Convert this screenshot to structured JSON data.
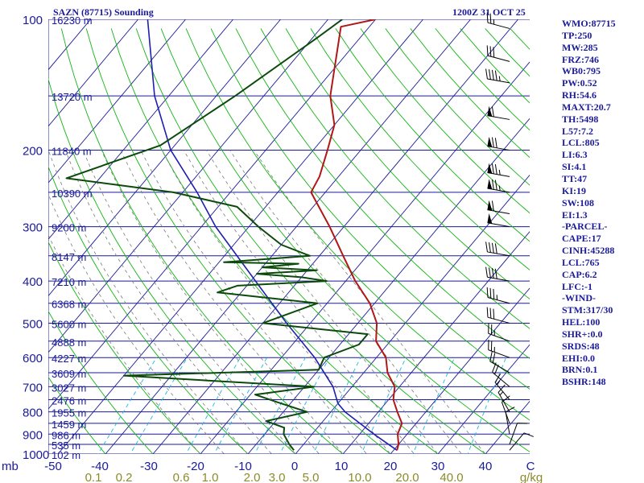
{
  "title": "SAZN (87715) Sounding",
  "timestamp": "1200Z 31 OCT 25",
  "colors": {
    "isobar": "#1a1a9a",
    "isotherm": "#1a1a9a",
    "dry_adiabat": "#13b513",
    "mixing_ratio": "#1ab8e0",
    "moist_adiabat": "#7a7a7a",
    "temperature": "#b01818",
    "dewpoint": "#0b4a0b",
    "parcel": "#1f1fb0",
    "wind": "#000000",
    "text": "#1a1a9a",
    "bottom_labels": "#8b8b2a"
  },
  "indices": [
    "WMO:87715",
    "TP:250",
    "MW:285",
    "FRZ:746",
    "WB0:795",
    "PW:0.52",
    "RH:54.6",
    "MAXT:20.7",
    "TH:5498",
    "L57:7.2",
    "LCL:805",
    "LI:6.3",
    "SI:4.1",
    "TT:47",
    "KI:19",
    "SW:108",
    "EI:1.3",
    "-PARCEL-",
    "CAPE:17",
    "CINH:45288",
    "LCL:765",
    "CAP:6.2",
    "LFC:-1",
    "-WIND-",
    "STM:317/30",
    "HEL:100",
    "SHR+:0.0",
    "SRDS:48",
    "EHI:0.0",
    "BRN:0.1",
    "BSHR:148"
  ],
  "chart_data": {
    "type": "skew-t",
    "pressure_axis_label": "mb",
    "pressure_ticks": [
      100,
      200,
      300,
      400,
      500,
      600,
      700,
      800,
      900,
      1000
    ],
    "temperature_ticks": [
      "-50",
      "-40",
      "-30",
      "-20",
      "-10",
      "0",
      "10",
      "20",
      "30",
      "40",
      "C"
    ],
    "mixing_ratio_ticks": [
      "0.1",
      "0.2",
      "0.6",
      "1.0",
      "2.0",
      "3.0",
      "5.0",
      "10.0",
      "20.0",
      "40.0",
      "g/kg"
    ],
    "heights": [
      {
        "p": 100,
        "label": "16230 m"
      },
      {
        "p": 150,
        "label": "13720 m"
      },
      {
        "p": 200,
        "label": "11840 m"
      },
      {
        "p": 250,
        "label": "10390 m"
      },
      {
        "p": 300,
        "label": "9200 m"
      },
      {
        "p": 350,
        "label": "8147 m"
      },
      {
        "p": 400,
        "label": "7210 m"
      },
      {
        "p": 450,
        "label": "6368 m"
      },
      {
        "p": 500,
        "label": "5600 m"
      },
      {
        "p": 550,
        "label": "4888 m"
      },
      {
        "p": 600,
        "label": "4227 m"
      },
      {
        "p": 650,
        "label": "3609 m"
      },
      {
        "p": 700,
        "label": "3027 m"
      },
      {
        "p": 750,
        "label": "2476 m"
      },
      {
        "p": 800,
        "label": "1955 m"
      },
      {
        "p": 850,
        "label": "1459 m"
      },
      {
        "p": 900,
        "label": "986 m"
      },
      {
        "p": 950,
        "label": "535 m"
      },
      {
        "p": 1000,
        "label": "102 m"
      }
    ],
    "temperature": [
      {
        "p": 100,
        "t": -60
      },
      {
        "p": 104,
        "t": -66
      },
      {
        "p": 150,
        "t": -56
      },
      {
        "p": 175,
        "t": -50
      },
      {
        "p": 200,
        "t": -47
      },
      {
        "p": 230,
        "t": -44
      },
      {
        "p": 250,
        "t": -43
      },
      {
        "p": 300,
        "t": -33
      },
      {
        "p": 350,
        "t": -25
      },
      {
        "p": 400,
        "t": -18
      },
      {
        "p": 450,
        "t": -11
      },
      {
        "p": 500,
        "t": -6
      },
      {
        "p": 550,
        "t": -3
      },
      {
        "p": 600,
        "t": 2
      },
      {
        "p": 650,
        "t": 5
      },
      {
        "p": 700,
        "t": 9
      },
      {
        "p": 750,
        "t": 11
      },
      {
        "p": 800,
        "t": 14
      },
      {
        "p": 850,
        "t": 17
      },
      {
        "p": 900,
        "t": 18
      },
      {
        "p": 950,
        "t": 20
      },
      {
        "p": 980,
        "t": 20.7
      }
    ],
    "dewpoint": [
      {
        "p": 100,
        "t": -67
      },
      {
        "p": 110,
        "t": -69
      },
      {
        "p": 150,
        "t": -76
      },
      {
        "p": 195,
        "t": -83
      },
      {
        "p": 232,
        "t": -97
      },
      {
        "p": 250,
        "t": -72
      },
      {
        "p": 270,
        "t": -56
      },
      {
        "p": 300,
        "t": -48
      },
      {
        "p": 330,
        "t": -40
      },
      {
        "p": 350,
        "t": -32
      },
      {
        "p": 362,
        "t": -49
      },
      {
        "p": 365,
        "t": -33
      },
      {
        "p": 372,
        "t": -40
      },
      {
        "p": 378,
        "t": -28
      },
      {
        "p": 385,
        "t": -40
      },
      {
        "p": 392,
        "t": -30
      },
      {
        "p": 400,
        "t": -24
      },
      {
        "p": 410,
        "t": -42
      },
      {
        "p": 425,
        "t": -45
      },
      {
        "p": 450,
        "t": -22
      },
      {
        "p": 500,
        "t": -30
      },
      {
        "p": 530,
        "t": -6
      },
      {
        "p": 560,
        "t": -6
      },
      {
        "p": 600,
        "t": -11
      },
      {
        "p": 640,
        "t": -10
      },
      {
        "p": 660,
        "t": -50
      },
      {
        "p": 700,
        "t": -8
      },
      {
        "p": 730,
        "t": -19
      },
      {
        "p": 760,
        "t": -13
      },
      {
        "p": 800,
        "t": -5
      },
      {
        "p": 840,
        "t": -12
      },
      {
        "p": 870,
        "t": -7
      },
      {
        "p": 900,
        "t": -6
      },
      {
        "p": 950,
        "t": -3
      },
      {
        "p": 980,
        "t": -1
      }
    ],
    "parcel": [
      {
        "p": 980,
        "t": 20.7
      },
      {
        "p": 900,
        "t": 13
      },
      {
        "p": 800,
        "t": 3
      },
      {
        "p": 765,
        "t": 0
      },
      {
        "p": 700,
        "t": -4
      },
      {
        "p": 600,
        "t": -13
      },
      {
        "p": 500,
        "t": -25
      },
      {
        "p": 400,
        "t": -39
      },
      {
        "p": 300,
        "t": -57
      },
      {
        "p": 250,
        "t": -67
      },
      {
        "p": 200,
        "t": -80
      },
      {
        "p": 150,
        "t": -93
      },
      {
        "p": 100,
        "t": -108
      }
    ],
    "wind": [
      {
        "p": 105,
        "dir": 285,
        "spd": 25
      },
      {
        "p": 125,
        "dir": 285,
        "spd": 30
      },
      {
        "p": 140,
        "dir": 280,
        "spd": 45
      },
      {
        "p": 170,
        "dir": 280,
        "spd": 60
      },
      {
        "p": 200,
        "dir": 280,
        "spd": 70
      },
      {
        "p": 230,
        "dir": 280,
        "spd": 75
      },
      {
        "p": 250,
        "dir": 280,
        "spd": 75
      },
      {
        "p": 280,
        "dir": 280,
        "spd": 60
      },
      {
        "p": 300,
        "dir": 280,
        "spd": 50
      },
      {
        "p": 350,
        "dir": 280,
        "spd": 40
      },
      {
        "p": 400,
        "dir": 280,
        "spd": 40
      },
      {
        "p": 450,
        "dir": 285,
        "spd": 35
      },
      {
        "p": 500,
        "dir": 285,
        "spd": 30
      },
      {
        "p": 550,
        "dir": 290,
        "spd": 25
      },
      {
        "p": 600,
        "dir": 290,
        "spd": 25
      },
      {
        "p": 650,
        "dir": 300,
        "spd": 20
      },
      {
        "p": 700,
        "dir": 310,
        "spd": 20
      },
      {
        "p": 750,
        "dir": 320,
        "spd": 15
      },
      {
        "p": 800,
        "dir": 330,
        "spd": 15
      },
      {
        "p": 850,
        "dir": 340,
        "spd": 10
      },
      {
        "p": 900,
        "dir": 350,
        "spd": 10
      },
      {
        "p": 950,
        "dir": 20,
        "spd": 10
      },
      {
        "p": 980,
        "dir": 40,
        "spd": 10
      }
    ]
  }
}
